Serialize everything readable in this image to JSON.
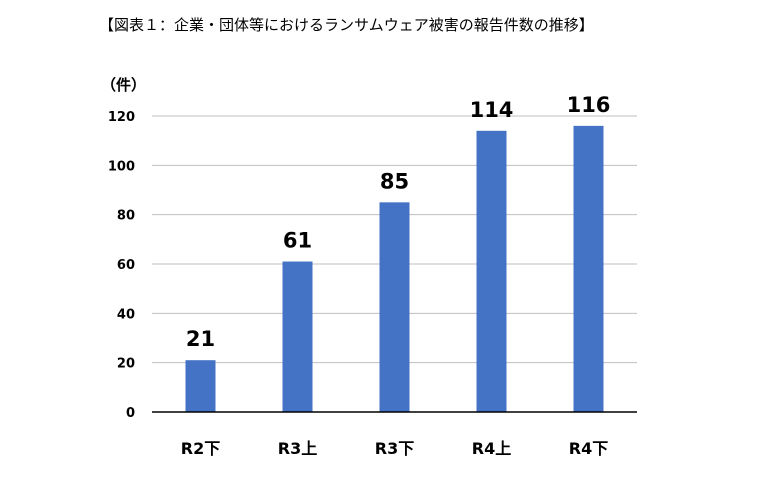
{
  "chart_data": {
    "type": "bar",
    "title": "【図表１：企業・団体等におけるランサムウェア被害の報告件数の推移】",
    "ylabel": "（件）",
    "xlabel": "",
    "categories": [
      "R2下",
      "R3上",
      "R3下",
      "R4上",
      "R4下"
    ],
    "values": [
      21,
      61,
      85,
      114,
      116
    ],
    "ylim": [
      0,
      120
    ],
    "yticks": [
      0,
      20,
      40,
      60,
      80,
      100,
      120
    ],
    "grid": true,
    "legend": "none",
    "bar_color": "#4472C4",
    "grid_color": "#bfbfbf",
    "axis_color": "#000000"
  }
}
